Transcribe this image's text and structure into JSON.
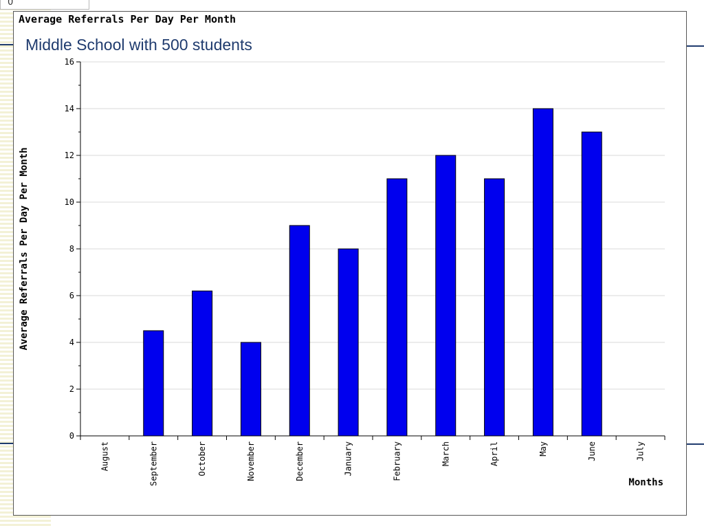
{
  "stub_text": "0",
  "chart_data": {
    "type": "bar",
    "title": "Average Referrals Per Day Per Month",
    "subtitle": "Middle School with 500 students",
    "xlabel": "Months",
    "ylabel": "Average Referrals Per Day Per Month",
    "categories": [
      "August",
      "September",
      "October",
      "November",
      "December",
      "January",
      "February",
      "March",
      "April",
      "May",
      "June",
      "July"
    ],
    "values": [
      0,
      4.5,
      6.2,
      4,
      9,
      8,
      11,
      12,
      11,
      14,
      13,
      0
    ],
    "yticks": [
      "0",
      "2",
      "4",
      "6",
      "8",
      "10",
      "12",
      "14",
      "16"
    ],
    "ylim": [
      0,
      16
    ],
    "grid": true,
    "bar_color": "#0000ee"
  }
}
